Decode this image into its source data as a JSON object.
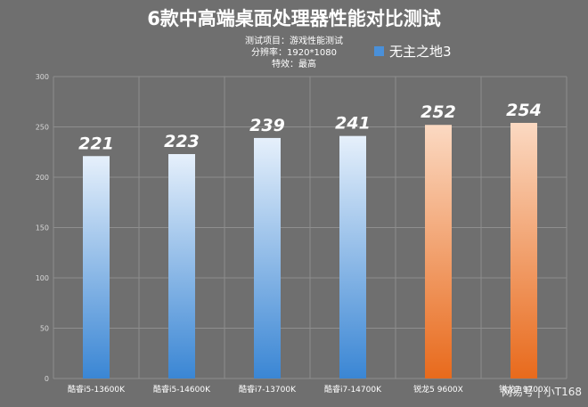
{
  "chart_data": {
    "type": "bar",
    "title": "6款中高端桌面处理器性能对比测试",
    "subtitle_lines": [
      "测试项目：游戏性能测试",
      "分辨率：1920*1080",
      "特效：最高"
    ],
    "categories": [
      "酷睿i5-13600K",
      "酷睿i5-14600K",
      "酷睿i7-13700K",
      "酷睿i7-14700K",
      "锐龙5 9600X",
      "锐龙7 9700X"
    ],
    "series": [
      {
        "name": "无主之地3",
        "values": [
          221,
          223,
          239,
          241,
          252,
          254
        ]
      }
    ],
    "ylim": [
      0,
      300
    ],
    "yticks": [
      0,
      50,
      100,
      150,
      200,
      250,
      300
    ],
    "grid": true,
    "legend": "top-right",
    "colors": {
      "intel_top": "#e6f0fb",
      "intel_bottom": "#3a86d4",
      "amd_top": "#fbd9c2",
      "amd_bottom": "#e86a1c",
      "legend_swatch": "#4a90d9"
    },
    "bar_brand": [
      "intel",
      "intel",
      "intel",
      "intel",
      "amd",
      "amd"
    ]
  },
  "watermark": "网易号 | 小T168"
}
